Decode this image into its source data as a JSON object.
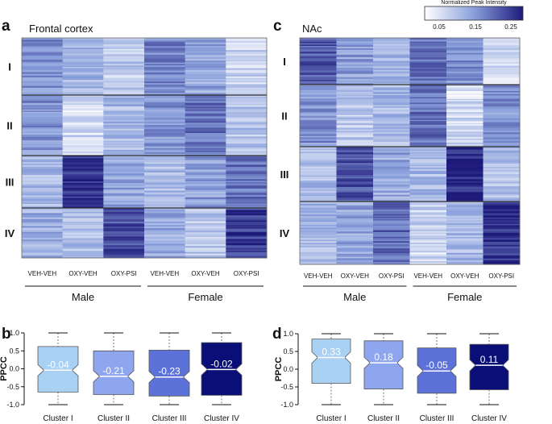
{
  "legend": {
    "title": "Normalized Peak Intensity",
    "ticks": [
      "0.05",
      "0.15",
      "0.25"
    ],
    "colors": [
      "#ffffff",
      "#8aa0dc",
      "#1e1a7a"
    ]
  },
  "chart_data": [
    {
      "type": "heatmap",
      "panel": "a",
      "title": "Frontal cortex",
      "clusters": [
        "I",
        "II",
        "III",
        "IV"
      ],
      "columns": [
        "VEH-VEH",
        "OXY-VEH",
        "OXY-PSI",
        "VEH-VEH",
        "OXY-VEH",
        "OXY-PSI"
      ],
      "groups": [
        {
          "label": "Male"
        },
        {
          "label": "Female"
        }
      ],
      "intensity": [
        [
          0.17,
          0.13,
          0.11,
          0.18,
          0.15,
          0.1
        ],
        [
          0.17,
          0.09,
          0.13,
          0.17,
          0.2,
          0.12
        ],
        [
          0.13,
          0.25,
          0.15,
          0.13,
          0.16,
          0.2
        ],
        [
          0.14,
          0.13,
          0.23,
          0.15,
          0.12,
          0.24
        ]
      ]
    },
    {
      "type": "heatmap",
      "panel": "c",
      "title": "NAc",
      "clusters": [
        "I",
        "II",
        "III",
        "IV"
      ],
      "columns": [
        "VEH-VEH",
        "OXY-VEH",
        "OXY-PSI",
        "VEH-VEH",
        "OXY-VEH",
        "OXY-PSI"
      ],
      "groups": [
        {
          "label": "Male"
        },
        {
          "label": "Female"
        }
      ],
      "intensity": [
        [
          0.22,
          0.16,
          0.13,
          0.2,
          0.17,
          0.09
        ],
        [
          0.17,
          0.11,
          0.13,
          0.2,
          0.09,
          0.17
        ],
        [
          0.13,
          0.22,
          0.15,
          0.13,
          0.26,
          0.13
        ],
        [
          0.13,
          0.15,
          0.2,
          0.1,
          0.13,
          0.25
        ]
      ]
    },
    {
      "type": "box",
      "panel": "b",
      "ylabel": "PPCC",
      "ylim": [
        -1.0,
        1.0
      ],
      "yticks": [
        "1.0",
        "0.5",
        "0.0",
        "-0.5",
        "-1.0"
      ],
      "categories": [
        "Cluster I",
        "Cluster II",
        "Cluster III",
        "Cluster IV"
      ],
      "colors": [
        "#a9d1f4",
        "#8ea6ee",
        "#5c72d8",
        "#0a0f78"
      ],
      "median_labels": [
        "-0.04",
        "-0.21",
        "-0.23",
        "-0.02"
      ],
      "boxes": [
        {
          "min": -1.0,
          "q1": -0.65,
          "median": -0.04,
          "q3": 0.62,
          "max": 1.0
        },
        {
          "min": -1.0,
          "q1": -0.72,
          "median": -0.21,
          "q3": 0.5,
          "max": 1.0
        },
        {
          "min": -1.0,
          "q1": -0.76,
          "median": -0.23,
          "q3": 0.52,
          "max": 1.0
        },
        {
          "min": -1.0,
          "q1": -0.74,
          "median": -0.02,
          "q3": 0.73,
          "max": 1.0
        }
      ]
    },
    {
      "type": "box",
      "panel": "d",
      "ylabel": "PPCC",
      "ylim": [
        -1.0,
        1.0
      ],
      "yticks": [
        "1.0",
        "0.5",
        "0.0",
        "-0.5",
        "-1.0"
      ],
      "categories": [
        "Cluster I",
        "Cluster II",
        "Cluster III",
        "Cluster IV"
      ],
      "colors": [
        "#a9d1f4",
        "#8ea6ee",
        "#5c72d8",
        "#0a0f78"
      ],
      "median_labels": [
        "0.33",
        "0.18",
        "-0.05",
        "0.11"
      ],
      "boxes": [
        {
          "min": -1.0,
          "q1": -0.4,
          "median": 0.33,
          "q3": 0.85,
          "max": 1.0
        },
        {
          "min": -1.0,
          "q1": -0.56,
          "median": 0.18,
          "q3": 0.8,
          "max": 1.0
        },
        {
          "min": -1.0,
          "q1": -0.68,
          "median": -0.05,
          "q3": 0.6,
          "max": 1.0
        },
        {
          "min": -1.0,
          "q1": -0.58,
          "median": 0.11,
          "q3": 0.7,
          "max": 1.0
        }
      ]
    }
  ]
}
